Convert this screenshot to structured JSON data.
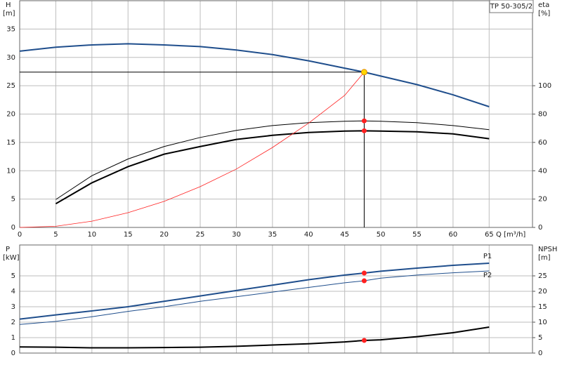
{
  "chart_data": [
    {
      "type": "line",
      "annotation": "TP 50-305/2",
      "xlabel": "Q [m³/h]",
      "ylabel": "H",
      "yunit": "[m]",
      "y2label": "eta",
      "y2unit": "[%]",
      "xlim": [
        0,
        71
      ],
      "xticks": [
        0,
        5,
        10,
        15,
        20,
        25,
        30,
        35,
        40,
        45,
        50,
        55,
        60,
        65
      ],
      "ylim": [
        0,
        40
      ],
      "yticks": [
        0,
        5,
        10,
        15,
        20,
        25,
        30,
        35
      ],
      "y2lim": [
        0,
        160
      ],
      "y2ticks": [
        0,
        20,
        40,
        60,
        80,
        100
      ],
      "grid": true,
      "marker_color": "#ff2020",
      "operating_point": {
        "x": 47.7,
        "y": 27.4,
        "color": "#ffd700"
      },
      "x": [
        0,
        5,
        10,
        15,
        20,
        25,
        30,
        35,
        40,
        45,
        47.7,
        50,
        55,
        60,
        65
      ],
      "series": [
        {
          "color": "#1f4e8c",
          "line_width": 2,
          "values": [
            31.1,
            31.8,
            32.2,
            32.4,
            32.2,
            31.9,
            31.3,
            30.5,
            29.4,
            28.1,
            27.4,
            26.7,
            25.2,
            23.4,
            21.3
          ]
        },
        {
          "color": "#000000",
          "line_width": 1,
          "axis": "y2",
          "marked": true,
          "values": [
            null,
            19.7,
            36.5,
            48.3,
            57.1,
            63.5,
            68.5,
            71.9,
            73.9,
            74.9,
            75.2,
            74.9,
            73.9,
            71.9,
            69.0
          ]
        },
        {
          "color": "#000000",
          "line_width": 2,
          "axis": "y2",
          "marked": true,
          "values": [
            null,
            16.7,
            31.5,
            42.9,
            51.7,
            57.1,
            62.1,
            65.0,
            67.0,
            68.0,
            68.2,
            68.0,
            67.5,
            66.0,
            62.6
          ]
        },
        {
          "color": "#ff2020",
          "line_width": 0.8,
          "values": [
            0,
            0.2,
            1.1,
            2.6,
            4.6,
            7.2,
            10.3,
            14.1,
            18.4,
            23.3,
            27.4,
            null,
            null,
            null,
            null
          ]
        }
      ]
    },
    {
      "type": "line",
      "ylabel": "P",
      "yunit": "[kW]",
      "y2label": "NPSH",
      "y2unit": "[m]",
      "xlim": [
        0,
        71
      ],
      "xticks": [
        0,
        5,
        10,
        15,
        20,
        25,
        30,
        35,
        40,
        45,
        50,
        55,
        60,
        65
      ],
      "ylim": [
        0,
        7
      ],
      "yticks": [
        0,
        1,
        2,
        3,
        4,
        5
      ],
      "y2lim": [
        0,
        35
      ],
      "y2ticks": [
        0,
        5,
        10,
        15,
        20,
        25
      ],
      "grid": true,
      "marker_color": "#ff2020",
      "x": [
        0,
        5,
        10,
        15,
        20,
        25,
        30,
        35,
        40,
        45,
        47.7,
        50,
        55,
        60,
        65
      ],
      "series": [
        {
          "name": "P1",
          "color": "#1f4e8c",
          "line_width": 2,
          "marked": true,
          "values": [
            2.2,
            2.47,
            2.73,
            3.0,
            3.35,
            3.7,
            4.05,
            4.4,
            4.75,
            5.05,
            5.18,
            5.3,
            5.5,
            5.68,
            5.82
          ]
        },
        {
          "name": "P2",
          "color": "#1f4e8c",
          "line_width": 1,
          "marked": true,
          "values": [
            1.85,
            2.05,
            2.35,
            2.7,
            3.0,
            3.35,
            3.65,
            3.95,
            4.25,
            4.55,
            4.68,
            4.85,
            5.05,
            5.2,
            5.32
          ]
        },
        {
          "color": "#000000",
          "line_width": 2,
          "axis": "y2",
          "marked": true,
          "values": [
            2.0,
            1.9,
            1.7,
            1.7,
            1.8,
            1.9,
            2.2,
            2.6,
            3.0,
            3.6,
            4.1,
            4.3,
            5.3,
            6.6,
            8.4
          ]
        }
      ]
    }
  ]
}
